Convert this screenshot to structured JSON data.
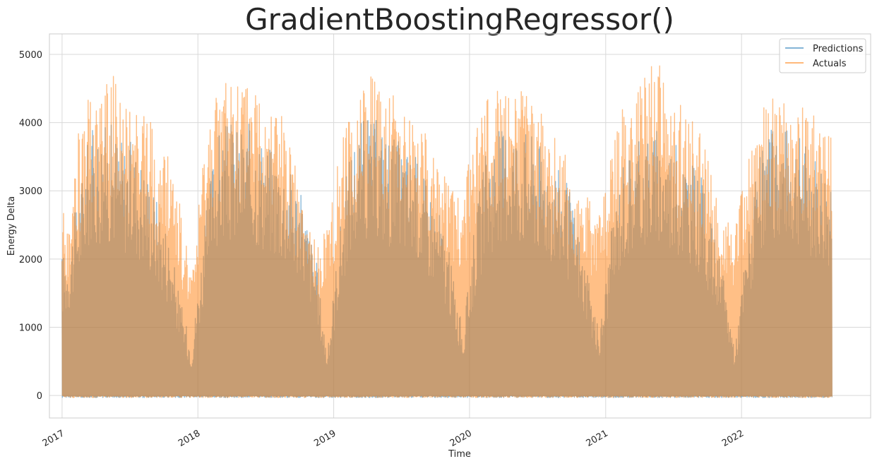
{
  "chart_data": {
    "type": "line",
    "title": "GradientBoostingRegressor()",
    "xlabel": "Time",
    "ylabel": "Energy Delta",
    "x_range": [
      "2016-11-28",
      "2022-12-14"
    ],
    "ylim": [
      -330,
      5300
    ],
    "yticks": [
      0,
      1000,
      2000,
      3000,
      4000,
      5000
    ],
    "xticks": [
      "2017",
      "2018",
      "2019",
      "2020",
      "2021",
      "2022"
    ],
    "grid": true,
    "legend_position": "top-right",
    "series": [
      {
        "name": "Predictions",
        "color": "#1f77b4",
        "alpha": 0.5,
        "x": [
          "2017-01",
          "2017-02",
          "2017-03",
          "2017-04",
          "2017-05",
          "2017-06",
          "2017-07",
          "2017-08",
          "2017-09",
          "2017-10",
          "2017-11",
          "2017-12",
          "2018-01",
          "2018-02",
          "2018-03",
          "2018-04",
          "2018-05",
          "2018-06",
          "2018-07",
          "2018-08",
          "2018-09",
          "2018-10",
          "2018-11",
          "2018-12",
          "2019-01",
          "2019-02",
          "2019-03",
          "2019-04",
          "2019-05",
          "2019-06",
          "2019-07",
          "2019-08",
          "2019-09",
          "2019-10",
          "2019-11",
          "2019-12",
          "2020-01",
          "2020-02",
          "2020-03",
          "2020-04",
          "2020-05",
          "2020-06",
          "2020-07",
          "2020-08",
          "2020-09",
          "2020-10",
          "2020-11",
          "2020-12",
          "2021-01",
          "2021-02",
          "2021-03",
          "2021-04",
          "2021-05",
          "2021-06",
          "2021-07",
          "2021-08",
          "2021-09",
          "2021-10",
          "2021-11",
          "2021-12",
          "2022-01",
          "2022-02",
          "2022-03",
          "2022-04",
          "2022-05",
          "2022-06",
          "2022-07",
          "2022-08"
        ],
        "values": [
          2100,
          3000,
          3900,
          4000,
          4000,
          3800,
          3700,
          3400,
          2900,
          2400,
          1400,
          700,
          2300,
          3800,
          4000,
          4000,
          4000,
          3900,
          3700,
          3500,
          3300,
          2800,
          2000,
          600,
          2400,
          3700,
          4100,
          4100,
          4000,
          3800,
          3700,
          3500,
          3100,
          2700,
          1900,
          900,
          2600,
          3600,
          3900,
          4100,
          4000,
          3900,
          3700,
          3500,
          3200,
          2600,
          1700,
          900,
          2400,
          3500,
          3700,
          3900,
          3900,
          3800,
          3700,
          3500,
          3200,
          2500,
          1700,
          700,
          2300,
          3400,
          3900,
          4000,
          3900,
          3800,
          3600,
          3400
        ]
      },
      {
        "name": "Actuals",
        "color": "#ff7f0e",
        "alpha": 0.5,
        "x": [
          "2017-01",
          "2017-02",
          "2017-03",
          "2017-04",
          "2017-05",
          "2017-06",
          "2017-07",
          "2017-08",
          "2017-09",
          "2017-10",
          "2017-11",
          "2017-12",
          "2018-01",
          "2018-02",
          "2018-03",
          "2018-04",
          "2018-05",
          "2018-06",
          "2018-07",
          "2018-08",
          "2018-09",
          "2018-10",
          "2018-11",
          "2018-12",
          "2019-01",
          "2019-02",
          "2019-03",
          "2019-04",
          "2019-05",
          "2019-06",
          "2019-07",
          "2019-08",
          "2019-09",
          "2019-10",
          "2019-11",
          "2019-12",
          "2020-01",
          "2020-02",
          "2020-03",
          "2020-04",
          "2020-05",
          "2020-06",
          "2020-07",
          "2020-08",
          "2020-09",
          "2020-10",
          "2020-11",
          "2020-12",
          "2021-01",
          "2021-02",
          "2021-03",
          "2021-04",
          "2021-05",
          "2021-06",
          "2021-07",
          "2021-08",
          "2021-09",
          "2021-10",
          "2021-11",
          "2021-12",
          "2022-01",
          "2022-02",
          "2022-03",
          "2022-04",
          "2022-05",
          "2022-06",
          "2022-07",
          "2022-08"
        ],
        "values": [
          2700,
          3900,
          4400,
          4500,
          4800,
          4300,
          4400,
          4300,
          3600,
          3500,
          2800,
          1700,
          3400,
          4500,
          4800,
          4700,
          4600,
          4500,
          4400,
          4200,
          3500,
          2600,
          2300,
          2600,
          3700,
          4300,
          4600,
          4900,
          4400,
          4400,
          4300,
          3900,
          3800,
          3600,
          3000,
          3100,
          3800,
          4400,
          4500,
          4600,
          4500,
          4400,
          4100,
          3900,
          3700,
          3000,
          3000,
          2700,
          3500,
          4300,
          4600,
          4700,
          5000,
          4600,
          4300,
          4200,
          3900,
          3300,
          2600,
          2500,
          3500,
          4000,
          4500,
          4400,
          4400,
          4300,
          4100,
          3900
        ]
      }
    ]
  }
}
